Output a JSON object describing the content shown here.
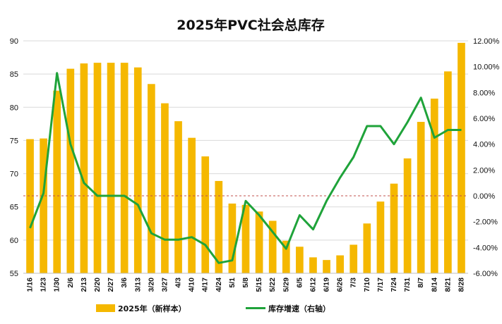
{
  "chart_data": {
    "type": "bar+line",
    "title": "2025年PVC社会总库存",
    "categories": [
      "1/16",
      "1/23",
      "1/30",
      "2/6",
      "2/13",
      "2/20",
      "2/27",
      "3/6",
      "3/13",
      "3/20",
      "3/27",
      "4/3",
      "4/10",
      "4/17",
      "4/24",
      "5/1",
      "5/8",
      "5/15",
      "5/22",
      "5/29",
      "6/5",
      "6/12",
      "6/19",
      "6/26",
      "7/3",
      "7/10",
      "7/17",
      "7/24",
      "7/31",
      "8/7",
      "8/14",
      "8/21",
      "8/28"
    ],
    "left_axis": {
      "ylim": [
        55,
        90
      ],
      "ticks": [
        "55",
        "60",
        "65",
        "70",
        "75",
        "80",
        "85",
        "90"
      ]
    },
    "right_axis": {
      "ylim": [
        -6,
        12
      ],
      "ticks": [
        "-6.00%",
        "-4.00%",
        "-2.00%",
        "0.00%",
        "2.00%",
        "4.00%",
        "6.00%",
        "8.00%",
        "10.00%",
        "12.00%"
      ]
    },
    "series": [
      {
        "name": "2025年（新样本）",
        "type": "bar",
        "axis": "left",
        "color": "#F5B800",
        "values": [
          75.2,
          75.3,
          82.5,
          85.8,
          86.6,
          86.7,
          86.7,
          86.7,
          86.0,
          83.5,
          80.6,
          77.9,
          75.4,
          72.6,
          68.9,
          65.5,
          65.3,
          64.3,
          62.9,
          59.9,
          59.0,
          57.4,
          57.0,
          57.7,
          59.3,
          62.5,
          65.8,
          68.5,
          72.3,
          77.8,
          81.3,
          85.4,
          89.7
        ]
      },
      {
        "name": "库存增速（右轴）",
        "type": "line",
        "axis": "right",
        "color": "#1FA33A",
        "values": [
          -2.5,
          0.2,
          9.5,
          4.0,
          1.0,
          0.0,
          0.0,
          0.0,
          -0.7,
          -2.9,
          -3.4,
          -3.4,
          -3.2,
          -3.8,
          -5.2,
          -5.0,
          -0.4,
          -1.5,
          -2.8,
          -4.1,
          -1.5,
          -2.6,
          -0.4,
          1.4,
          3.0,
          5.4,
          5.4,
          4.0,
          5.7,
          7.6,
          4.5,
          5.1,
          5.1
        ]
      }
    ],
    "reference_line": {
      "axis": "right",
      "value": 0,
      "color": "#C0504D",
      "style": "dashed"
    },
    "grid": true,
    "legend": "bottom"
  }
}
